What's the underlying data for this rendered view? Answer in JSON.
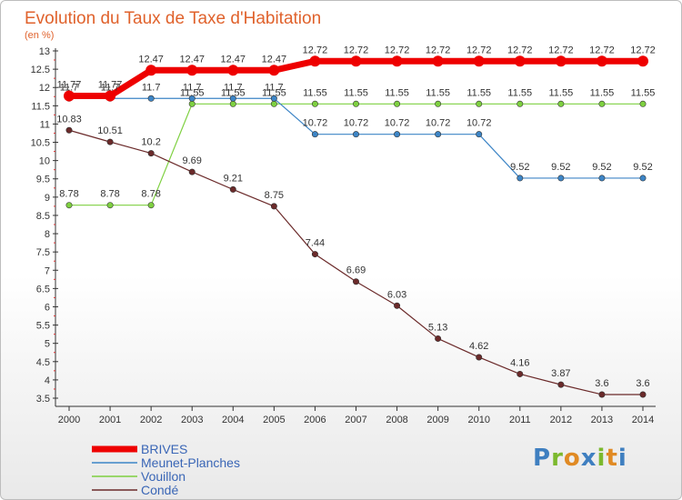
{
  "chart_data": {
    "type": "line",
    "title": "Evolution du Taux de Taxe d'Habitation",
    "subtitle": "(en %)",
    "categories": [
      "2000",
      "2001",
      "2002",
      "2003",
      "2004",
      "2005",
      "2006",
      "2007",
      "2008",
      "2009",
      "2010",
      "2011",
      "2012",
      "2013",
      "2014"
    ],
    "ylim": [
      3.5,
      13
    ],
    "yticks": [
      "3.5",
      "4",
      "4.5",
      "5",
      "5.5",
      "6",
      "6.5",
      "7",
      "7.5",
      "8",
      "8.5",
      "9",
      "9.5",
      "10",
      "10.5",
      "11",
      "11.5",
      "12",
      "12.5",
      "13"
    ],
    "grid": false,
    "legend_position": "bottom-left",
    "series": [
      {
        "name": "BRIVES",
        "color": "#ee0000",
        "values": [
          11.77,
          11.77,
          12.47,
          12.47,
          12.47,
          12.47,
          12.72,
          12.72,
          12.72,
          12.72,
          12.72,
          12.72,
          12.72,
          12.72,
          12.72
        ],
        "labels": [
          "11.77",
          "11.77",
          "12.47",
          "12.47",
          "12.47",
          "12.47",
          "12.72",
          "12.72",
          "12.72",
          "12.72",
          "12.72",
          "12.72",
          "12.72",
          "12.72",
          "12.72"
        ]
      },
      {
        "name": "Meunet-Planches",
        "color": "#3d85c6",
        "values": [
          11.7,
          11.7,
          11.7,
          11.7,
          11.7,
          11.7,
          10.72,
          10.72,
          10.72,
          10.72,
          10.72,
          9.52,
          9.52,
          9.52,
          9.52
        ],
        "labels": [
          "11.7",
          "11.7",
          "11.7",
          "11.7",
          "11.7",
          "11.7",
          "10.72",
          "10.72",
          "10.72",
          "10.72",
          "10.72",
          "9.52",
          "9.52",
          "9.52",
          "9.52"
        ]
      },
      {
        "name": "Vouillon",
        "color": "#7ed040",
        "values": [
          8.78,
          8.78,
          8.78,
          11.55,
          11.55,
          11.55,
          11.55,
          11.55,
          11.55,
          11.55,
          11.55,
          11.55,
          11.55,
          11.55,
          11.55
        ],
        "labels": [
          "8.78",
          "8.78",
          "8.78",
          "11.55",
          "11.55",
          "11.55",
          "11.55",
          "11.55",
          "11.55",
          "11.55",
          "11.55",
          "11.55",
          "11.55",
          "11.55",
          "11.55"
        ]
      },
      {
        "name": "Condé",
        "color": "#6b2a2a",
        "values": [
          10.83,
          10.51,
          10.2,
          9.69,
          9.21,
          8.75,
          7.44,
          6.69,
          6.03,
          5.13,
          4.62,
          4.16,
          3.87,
          3.6,
          3.6
        ],
        "labels": [
          "10.83",
          "10.51",
          "10.2",
          "9.69",
          "9.21",
          "8.75",
          "7.44",
          "6.69",
          "6.03",
          "5.13",
          "4.62",
          "4.16",
          "3.87",
          "3.6",
          "3.6"
        ]
      }
    ]
  },
  "brand": {
    "logo_text": "Proxiti"
  }
}
